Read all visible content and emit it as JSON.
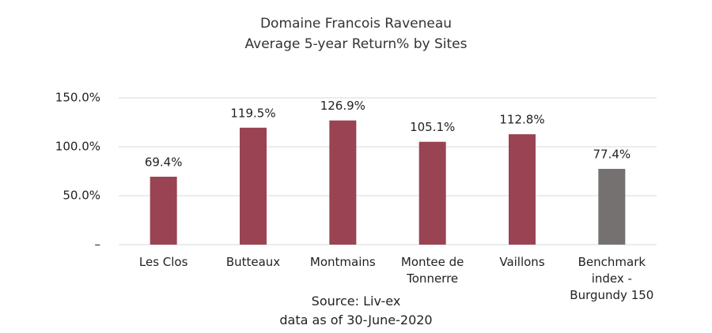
{
  "chart_data": {
    "type": "bar",
    "title": "Domaine Francois Raveneau",
    "subtitle": "Average 5-year Return% by Sites",
    "categories": [
      "Les Clos",
      "Butteaux",
      "Montmains",
      "Montee de Tonnerre",
      "Vaillons",
      "Benchmark index - Burgundy 150"
    ],
    "values": [
      69.4,
      119.5,
      126.9,
      105.1,
      112.8,
      77.4
    ],
    "value_labels": [
      "69.4%",
      "119.5%",
      "126.9%",
      "105.1%",
      "112.8%",
      "77.4%"
    ],
    "colors": [
      "#9a4352",
      "#9a4352",
      "#9a4352",
      "#9a4352",
      "#9a4352",
      "#767171"
    ],
    "ylim": [
      0,
      150
    ],
    "yticks": [
      {
        "value": 0,
        "label": "–"
      },
      {
        "value": 50,
        "label": "50.0%"
      },
      {
        "value": 100,
        "label": "100.0%"
      },
      {
        "value": 150,
        "label": "150.0%"
      }
    ],
    "grid": true,
    "annotations": [
      "Source: Liv-ex",
      "data as of 30-June-2020"
    ]
  }
}
